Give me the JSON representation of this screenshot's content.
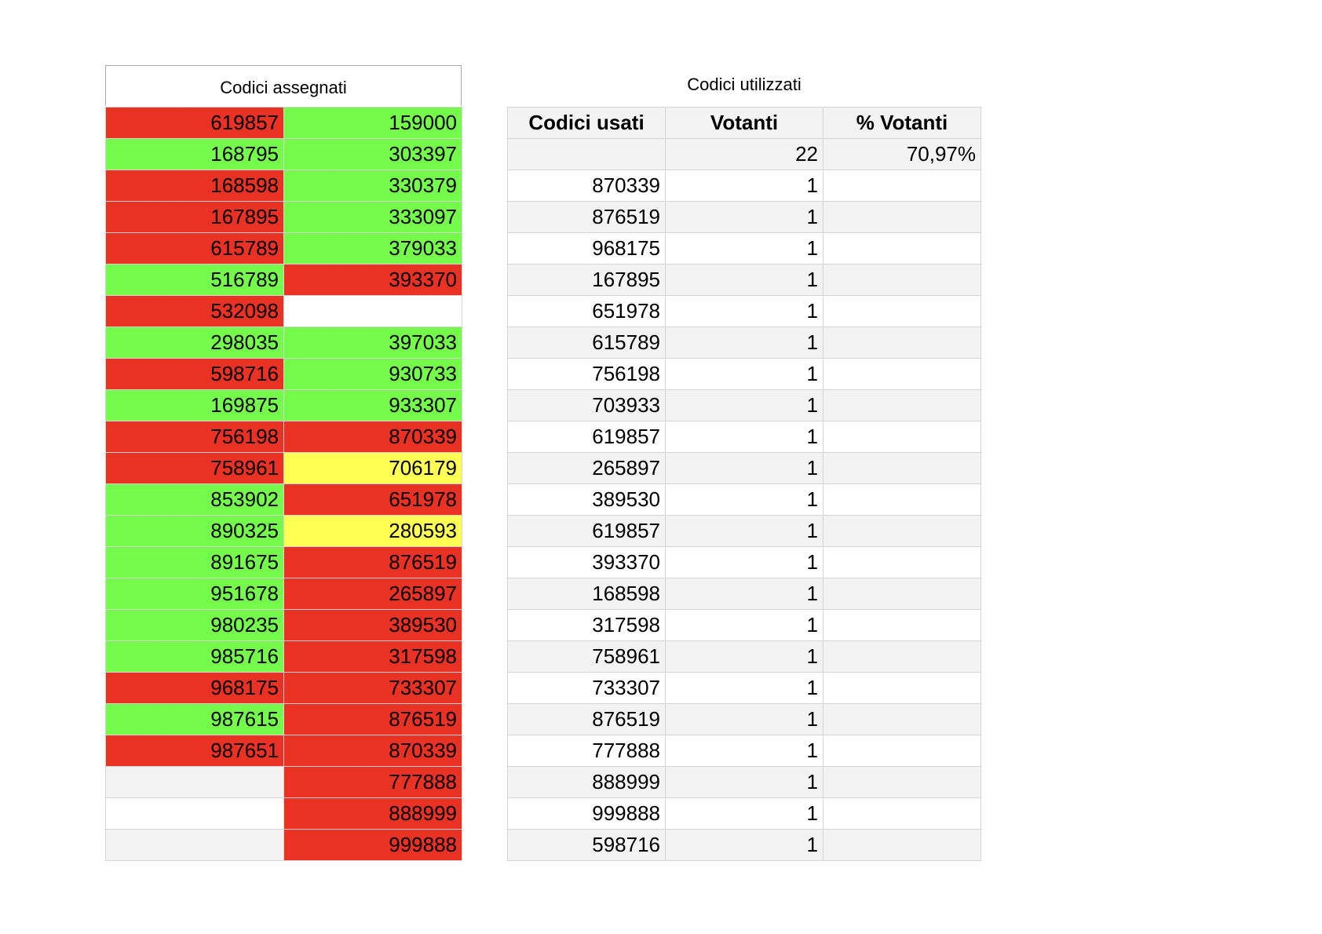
{
  "assigned": {
    "title": "Codici assegnati",
    "colors": {
      "red": "#e93223",
      "green": "#75fb4c",
      "yellow": "#fffe54",
      "white": "#ffffff",
      "grey": "#f3f3f3"
    },
    "rows": [
      [
        {
          "value": "619857",
          "color": "red"
        },
        {
          "value": "159000",
          "color": "green"
        }
      ],
      [
        {
          "value": "168795",
          "color": "green"
        },
        {
          "value": "303397",
          "color": "green"
        }
      ],
      [
        {
          "value": "168598",
          "color": "red"
        },
        {
          "value": "330379",
          "color": "green"
        }
      ],
      [
        {
          "value": "167895",
          "color": "red"
        },
        {
          "value": "333097",
          "color": "green"
        }
      ],
      [
        {
          "value": "615789",
          "color": "red"
        },
        {
          "value": "379033",
          "color": "green"
        }
      ],
      [
        {
          "value": "516789",
          "color": "green"
        },
        {
          "value": "393370",
          "color": "red"
        }
      ],
      [
        {
          "value": "532098",
          "color": "red"
        },
        {
          "value": "",
          "color": "white"
        }
      ],
      [
        {
          "value": "298035",
          "color": "green"
        },
        {
          "value": "397033",
          "color": "green"
        }
      ],
      [
        {
          "value": "598716",
          "color": "red"
        },
        {
          "value": "930733",
          "color": "green"
        }
      ],
      [
        {
          "value": "169875",
          "color": "green"
        },
        {
          "value": "933307",
          "color": "green"
        }
      ],
      [
        {
          "value": "756198",
          "color": "red"
        },
        {
          "value": "870339",
          "color": "red"
        }
      ],
      [
        {
          "value": "758961",
          "color": "red"
        },
        {
          "value": "706179",
          "color": "yellow"
        }
      ],
      [
        {
          "value": "853902",
          "color": "green"
        },
        {
          "value": "651978",
          "color": "red"
        }
      ],
      [
        {
          "value": "890325",
          "color": "green"
        },
        {
          "value": "280593",
          "color": "yellow"
        }
      ],
      [
        {
          "value": "891675",
          "color": "green"
        },
        {
          "value": "876519",
          "color": "red"
        }
      ],
      [
        {
          "value": "951678",
          "color": "green"
        },
        {
          "value": "265897",
          "color": "red"
        }
      ],
      [
        {
          "value": "980235",
          "color": "green"
        },
        {
          "value": "389530",
          "color": "red"
        }
      ],
      [
        {
          "value": "985716",
          "color": "green"
        },
        {
          "value": "317598",
          "color": "red"
        }
      ],
      [
        {
          "value": "968175",
          "color": "red"
        },
        {
          "value": "733307",
          "color": "red"
        }
      ],
      [
        {
          "value": "987615",
          "color": "green"
        },
        {
          "value": "876519",
          "color": "red"
        }
      ],
      [
        {
          "value": "987651",
          "color": "red"
        },
        {
          "value": "870339",
          "color": "red"
        }
      ],
      [
        {
          "value": "",
          "color": "grey"
        },
        {
          "value": "777888",
          "color": "red"
        }
      ],
      [
        {
          "value": "",
          "color": "white"
        },
        {
          "value": "888999",
          "color": "red"
        }
      ],
      [
        {
          "value": "",
          "color": "grey"
        },
        {
          "value": "999888",
          "color": "red"
        }
      ]
    ]
  },
  "used": {
    "title": "Codici utilizzati",
    "headers": [
      "Codici usati",
      "Votanti",
      "% Votanti"
    ],
    "summary": [
      "",
      "22",
      "70,97%"
    ],
    "rows": [
      [
        "870339",
        "1",
        ""
      ],
      [
        "876519",
        "1",
        ""
      ],
      [
        "968175",
        "1",
        ""
      ],
      [
        "167895",
        "1",
        ""
      ],
      [
        "651978",
        "1",
        ""
      ],
      [
        "615789",
        "1",
        ""
      ],
      [
        "756198",
        "1",
        ""
      ],
      [
        "703933",
        "1",
        ""
      ],
      [
        "619857",
        "1",
        ""
      ],
      [
        "265897",
        "1",
        ""
      ],
      [
        "389530",
        "1",
        ""
      ],
      [
        "619857",
        "1",
        ""
      ],
      [
        "393370",
        "1",
        ""
      ],
      [
        "168598",
        "1",
        ""
      ],
      [
        "317598",
        "1",
        ""
      ],
      [
        "758961",
        "1",
        ""
      ],
      [
        "733307",
        "1",
        ""
      ],
      [
        "876519",
        "1",
        ""
      ],
      [
        "777888",
        "1",
        ""
      ],
      [
        "888999",
        "1",
        ""
      ],
      [
        "999888",
        "1",
        ""
      ],
      [
        "598716",
        "1",
        ""
      ]
    ]
  }
}
